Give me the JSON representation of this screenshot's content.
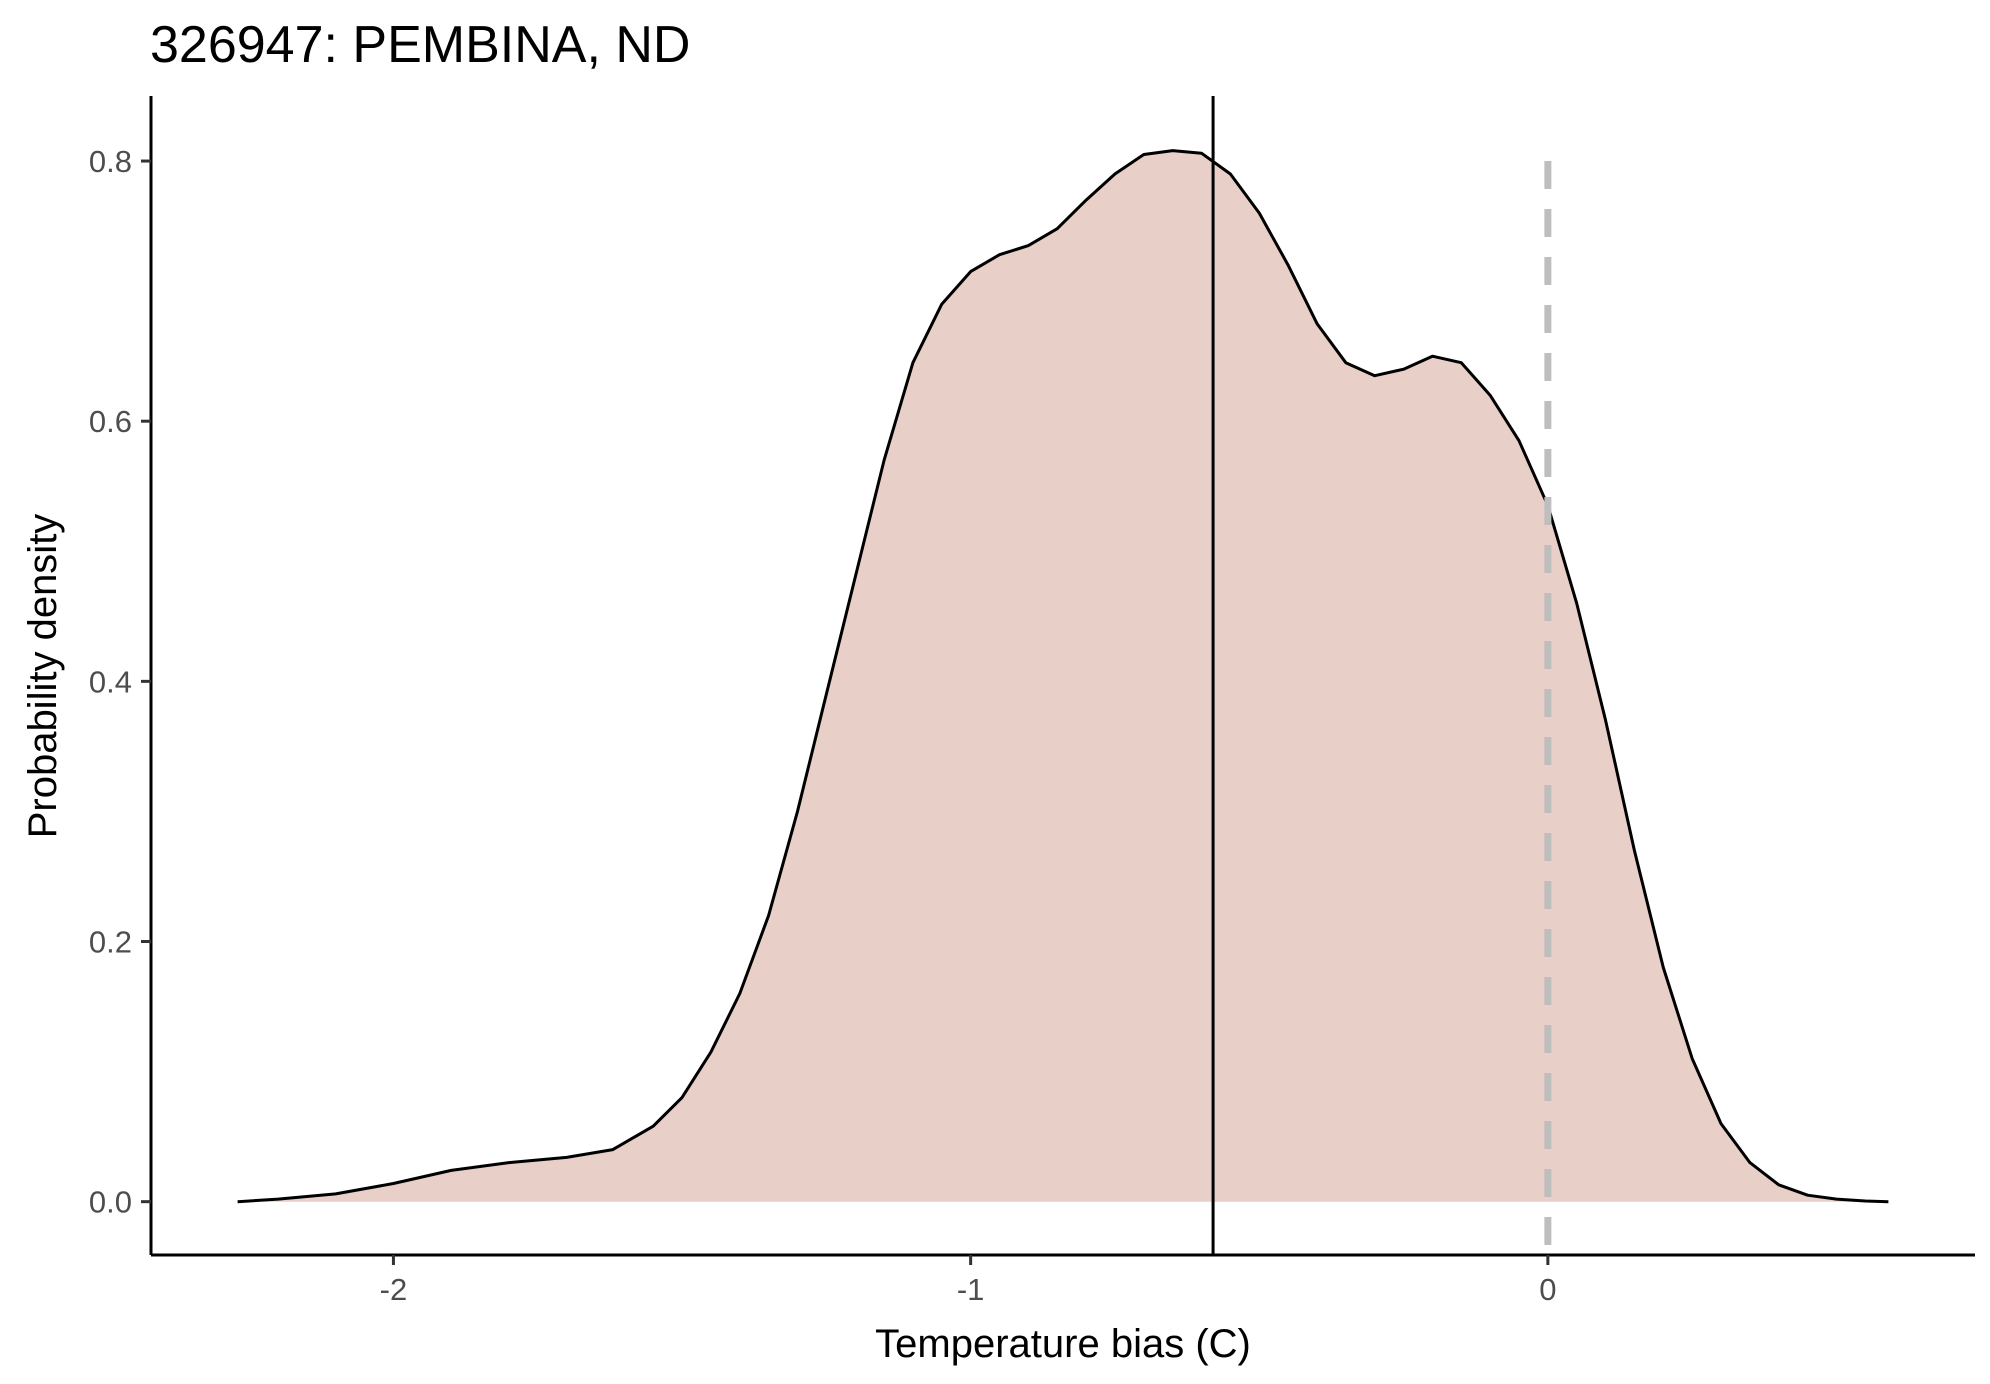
{
  "chart_data": {
    "type": "area",
    "title": "326947: PEMBINA, ND",
    "xlabel": "Temperature bias (C)",
    "ylabel": "Probability density",
    "xlim": [
      -2.42,
      0.74
    ],
    "ylim": [
      -0.041,
      0.85
    ],
    "x_ticks": [
      -2,
      -1,
      0
    ],
    "x_tick_labels": [
      "-2",
      "-1",
      "0"
    ],
    "y_ticks": [
      0.0,
      0.2,
      0.4,
      0.6,
      0.8
    ],
    "y_tick_labels": [
      "0.0",
      "0.2",
      "0.4",
      "0.6",
      "0.8"
    ],
    "grid": false,
    "legend": "none",
    "colors": {
      "fill": "#e8cfc8",
      "line": "#000000",
      "mean_line": "#000000",
      "zero_line": "#bebebe"
    },
    "vertical_lines": [
      {
        "role": "mean",
        "x": -0.58,
        "style": "solid"
      },
      {
        "role": "zero",
        "x": 0,
        "style": "dashed"
      }
    ],
    "series": [
      {
        "x": [
          -2.27,
          -2.2,
          -2.1,
          -2.0,
          -1.9,
          -1.8,
          -1.7,
          -1.62,
          -1.55,
          -1.5,
          -1.45,
          -1.4,
          -1.35,
          -1.3,
          -1.25,
          -1.2,
          -1.15,
          -1.1,
          -1.05,
          -1.0,
          -0.95,
          -0.9,
          -0.85,
          -0.8,
          -0.75,
          -0.7,
          -0.65,
          -0.6,
          -0.55,
          -0.5,
          -0.45,
          -0.4,
          -0.35,
          -0.3,
          -0.25,
          -0.2,
          -0.15,
          -0.1,
          -0.05,
          0.0,
          0.05,
          0.1,
          0.15,
          0.2,
          0.25,
          0.3,
          0.35,
          0.4,
          0.45,
          0.5,
          0.55,
          0.59
        ],
        "y": [
          0.0,
          0.002,
          0.006,
          0.014,
          0.024,
          0.03,
          0.034,
          0.04,
          0.058,
          0.08,
          0.115,
          0.16,
          0.22,
          0.3,
          0.39,
          0.48,
          0.57,
          0.645,
          0.69,
          0.715,
          0.728,
          0.735,
          0.748,
          0.77,
          0.79,
          0.805,
          0.808,
          0.806,
          0.79,
          0.76,
          0.72,
          0.675,
          0.645,
          0.635,
          0.64,
          0.65,
          0.645,
          0.62,
          0.585,
          0.535,
          0.46,
          0.37,
          0.27,
          0.18,
          0.11,
          0.06,
          0.03,
          0.013,
          0.005,
          0.002,
          0.0005,
          0.0
        ]
      }
    ]
  }
}
